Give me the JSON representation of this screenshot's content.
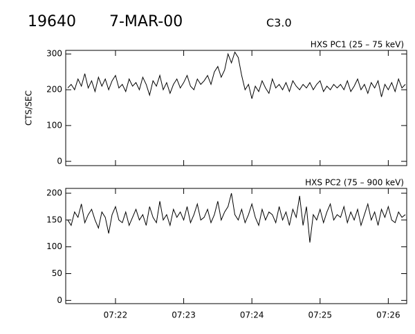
{
  "header": {
    "id": "19640",
    "date": "7-MAR-00",
    "class": "C3.0"
  },
  "chart_data": [
    {
      "type": "line",
      "title": "HXS PC1 (25 – 75 keV)",
      "y_label": "CTS/SEC",
      "color": "#000000",
      "xlim": [
        441.27,
        446.27
      ],
      "ylim": [
        -12,
        310
      ],
      "xticks": [
        {
          "value": 442,
          "label": "07:22"
        },
        {
          "value": 443,
          "label": "07:23"
        },
        {
          "value": 444,
          "label": "07:24"
        },
        {
          "value": 445,
          "label": "07:25"
        },
        {
          "value": 446,
          "label": "07:26"
        }
      ],
      "yticks": [
        0,
        100,
        200,
        300
      ],
      "x": [
        441.3,
        441.35,
        441.4,
        441.45,
        441.5,
        441.55,
        441.6,
        441.65,
        441.7,
        441.75,
        441.8,
        441.85,
        441.9,
        441.95,
        442,
        442.05,
        442.1,
        442.15,
        442.2,
        442.25,
        442.3,
        442.35,
        442.4,
        442.45,
        442.5,
        442.55,
        442.6,
        442.65,
        442.7,
        442.75,
        442.8,
        442.85,
        442.9,
        442.95,
        443,
        443.05,
        443.1,
        443.15,
        443.2,
        443.25,
        443.3,
        443.35,
        443.4,
        443.45,
        443.5,
        443.55,
        443.6,
        443.65,
        443.7,
        443.75,
        443.8,
        443.85,
        443.9,
        443.95,
        444,
        444.05,
        444.1,
        444.15,
        444.2,
        444.25,
        444.3,
        444.35,
        444.4,
        444.45,
        444.5,
        444.55,
        444.6,
        444.65,
        444.7,
        444.75,
        444.8,
        444.85,
        444.9,
        444.95,
        445,
        445.05,
        445.1,
        445.15,
        445.2,
        445.25,
        445.3,
        445.35,
        445.4,
        445.45,
        445.5,
        445.55,
        445.6,
        445.65,
        445.7,
        445.75,
        445.8,
        445.85,
        445.9,
        445.95,
        446,
        446.05,
        446.1,
        446.15,
        446.2,
        446.25
      ],
      "values": [
        205,
        215,
        200,
        230,
        210,
        245,
        205,
        225,
        195,
        235,
        210,
        230,
        200,
        225,
        240,
        205,
        215,
        195,
        230,
        210,
        220,
        200,
        235,
        215,
        185,
        225,
        210,
        240,
        200,
        220,
        190,
        215,
        230,
        205,
        220,
        240,
        210,
        200,
        230,
        215,
        225,
        240,
        215,
        250,
        265,
        235,
        255,
        300,
        275,
        305,
        290,
        240,
        200,
        215,
        175,
        210,
        195,
        225,
        205,
        190,
        230,
        205,
        215,
        200,
        220,
        195,
        225,
        210,
        200,
        215,
        205,
        220,
        200,
        215,
        225,
        195,
        210,
        200,
        215,
        205,
        215,
        200,
        225,
        195,
        210,
        230,
        200,
        215,
        190,
        220,
        205,
        225,
        180,
        215,
        200,
        220,
        195,
        230,
        205,
        215
      ]
    },
    {
      "type": "line",
      "title": "HXS PC2 (75 – 900 keV)",
      "color": "#000000",
      "xlim": [
        441.27,
        446.27
      ],
      "ylim": [
        -6,
        209
      ],
      "xticks": [
        {
          "value": 442,
          "label": "07:22"
        },
        {
          "value": 443,
          "label": "07:23"
        },
        {
          "value": 444,
          "label": "07:24"
        },
        {
          "value": 445,
          "label": "07:25"
        },
        {
          "value": 446,
          "label": "07:26"
        }
      ],
      "yticks": [
        0,
        50,
        100,
        150,
        200
      ],
      "x": [
        441.3,
        441.35,
        441.4,
        441.45,
        441.5,
        441.55,
        441.6,
        441.65,
        441.7,
        441.75,
        441.8,
        441.85,
        441.9,
        441.95,
        442,
        442.05,
        442.1,
        442.15,
        442.2,
        442.25,
        442.3,
        442.35,
        442.4,
        442.45,
        442.5,
        442.55,
        442.6,
        442.65,
        442.7,
        442.75,
        442.8,
        442.85,
        442.9,
        442.95,
        443,
        443.05,
        443.1,
        443.15,
        443.2,
        443.25,
        443.3,
        443.35,
        443.4,
        443.45,
        443.5,
        443.55,
        443.6,
        443.65,
        443.7,
        443.75,
        443.8,
        443.85,
        443.9,
        443.95,
        444,
        444.05,
        444.1,
        444.15,
        444.2,
        444.25,
        444.3,
        444.35,
        444.4,
        444.45,
        444.5,
        444.55,
        444.6,
        444.65,
        444.7,
        444.75,
        444.8,
        444.85,
        444.9,
        444.95,
        445,
        445.05,
        445.1,
        445.15,
        445.2,
        445.25,
        445.3,
        445.35,
        445.4,
        445.45,
        445.5,
        445.55,
        445.6,
        445.65,
        445.7,
        445.75,
        445.8,
        445.85,
        445.9,
        445.95,
        446,
        446.05,
        446.1,
        446.15,
        446.2,
        446.25
      ],
      "values": [
        150,
        140,
        165,
        155,
        180,
        145,
        160,
        170,
        150,
        135,
        165,
        155,
        125,
        160,
        175,
        150,
        145,
        165,
        140,
        155,
        170,
        150,
        160,
        140,
        175,
        155,
        145,
        185,
        150,
        160,
        140,
        170,
        155,
        165,
        150,
        175,
        145,
        160,
        180,
        150,
        155,
        170,
        145,
        160,
        185,
        150,
        165,
        175,
        200,
        160,
        150,
        170,
        145,
        160,
        180,
        155,
        140,
        170,
        150,
        165,
        160,
        145,
        175,
        150,
        165,
        140,
        170,
        155,
        195,
        140,
        175,
        108,
        160,
        150,
        170,
        145,
        165,
        180,
        150,
        160,
        155,
        175,
        145,
        165,
        150,
        170,
        140,
        160,
        180,
        150,
        165,
        140,
        170,
        155,
        175,
        150,
        145,
        165,
        155,
        160
      ]
    }
  ]
}
